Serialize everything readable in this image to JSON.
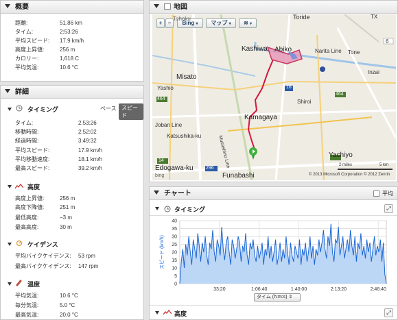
{
  "overview": {
    "title": "概要",
    "rows": [
      {
        "label": "距離:",
        "value": "51.86 km"
      },
      {
        "label": "タイム:",
        "value": "2:53:26"
      },
      {
        "label": "平均スピード:",
        "value": "17.9 km/h"
      },
      {
        "label": "高度上昇値:",
        "value": "256 m"
      },
      {
        "label": "カロリー:",
        "value": "1,618 C"
      },
      {
        "label": "平均気温:",
        "value": "10.6 °C"
      }
    ]
  },
  "details": {
    "title": "詳細",
    "timing": {
      "title": "タイミング",
      "toggle_pace": "ペース",
      "toggle_speed": "スピード",
      "rows": [
        {
          "label": "タイム:",
          "value": "2:53:26"
        },
        {
          "label": "移動時間:",
          "value": "2:52:02"
        },
        {
          "label": "経過時間:",
          "value": "3:49:32"
        },
        {
          "label": "平均スピード:",
          "value": "17.9 km/h"
        },
        {
          "label": "平均移動速度:",
          "value": "18.1 km/h"
        },
        {
          "label": "最高スピード:",
          "value": "39.2 km/h"
        }
      ]
    },
    "elevation": {
      "title": "高度",
      "rows": [
        {
          "label": "高度上昇値:",
          "value": "256 m"
        },
        {
          "label": "高度下降値:",
          "value": "251 m"
        },
        {
          "label": "最低高度:",
          "value": "−3 m"
        },
        {
          "label": "最高高度:",
          "value": "30 m"
        }
      ]
    },
    "cadence": {
      "title": "ケイデンス",
      "rows": [
        {
          "label": "平均バイクケイデンス:",
          "value": "53 rpm"
        },
        {
          "label": "最高バイクケイデンス:",
          "value": "147 rpm"
        }
      ]
    },
    "temperature": {
      "title": "温度",
      "rows": [
        {
          "label": "平均気温:",
          "value": "10.6 °C"
        },
        {
          "label": "毎分気温:",
          "value": "5.0 °C"
        },
        {
          "label": "最高気温:",
          "value": "20.0 °C"
        }
      ]
    }
  },
  "map": {
    "title": "地図",
    "zoom_in": "+",
    "zoom_out": "−",
    "provider": "Bing",
    "map_type": "マップ",
    "labels": {
      "toride": "Toride",
      "abiko": "Abiko",
      "kashiwa": "Kashiwa",
      "narita_line": "Narita Line",
      "tone": "Tone",
      "inzai": "Inzai",
      "misato": "Misato",
      "yashio": "Yashio",
      "kamagaya": "Kamagaya",
      "shiroi": "Shiroi",
      "joban_line": "Joban Line",
      "katsushika": "Katsushika-ku",
      "musashino_line": "Musashino Line",
      "yachiyo": "Yachiyo",
      "edogawa": "Edogawa-ku",
      "funabashi": "Funabashi",
      "tohoku": "Tohoku",
      "tx": "TX",
      "r6": "6",
      "r16": "16",
      "r464": "464",
      "r464b": "464",
      "r296": "296",
      "r14": "14"
    },
    "scale_miles": "2 miles",
    "scale_km": "5 km",
    "copyright": "© 2013 Microsoft Corporation  © 2012 Zenrin",
    "bing": "bing"
  },
  "chart": {
    "title": "チャート",
    "average_label": "平均",
    "timing_title": "タイミング",
    "elevation_title": "高度",
    "xaxis_select": "タイム (h:m:s)",
    "colors": {
      "line": "#1a66d4",
      "fill": "#bcd6f5"
    }
  },
  "chart_data": {
    "type": "area",
    "title": "",
    "xlabel": "タイム (h:m:s)",
    "ylabel": "スピード (km/h)",
    "xlim": [
      0,
      10406
    ],
    "ylim": [
      0,
      40
    ],
    "yticks": [
      0,
      5,
      10,
      15,
      20,
      25,
      30,
      35,
      40
    ],
    "xticks": [
      {
        "value": 2000,
        "label": "33:20"
      },
      {
        "value": 4000,
        "label": "1:06:40"
      },
      {
        "value": 6000,
        "label": "1:40:00"
      },
      {
        "value": 8000,
        "label": "2:13:20"
      },
      {
        "value": 10000,
        "label": "2:46:40"
      }
    ],
    "series": [
      {
        "values": [
          0,
          14,
          22,
          10,
          25,
          18,
          30,
          20,
          12,
          28,
          22,
          16,
          32,
          24,
          14,
          26,
          20,
          30,
          18,
          12,
          26,
          22,
          34,
          20,
          14,
          28,
          24,
          18,
          36,
          22,
          15,
          26,
          30,
          20,
          12,
          28,
          24,
          16,
          22,
          30,
          26,
          14,
          24,
          20,
          32,
          18,
          12,
          26,
          22,
          28,
          18,
          14,
          24,
          16,
          20,
          26,
          12,
          22,
          18,
          30,
          16,
          24,
          14,
          20,
          28,
          12,
          18,
          26,
          14,
          22,
          16,
          30,
          20,
          12,
          26,
          18,
          14,
          24,
          20,
          16,
          28,
          12,
          22,
          18,
          26,
          14,
          20,
          30,
          16,
          24,
          12,
          22,
          18,
          28,
          20,
          26,
          34,
          22,
          16,
          30,
          24,
          38,
          20,
          14,
          28,
          26,
          36,
          18,
          24,
          30,
          16,
          22,
          28,
          20,
          34,
          24,
          18,
          30,
          14,
          26,
          22,
          32,
          18,
          24,
          16,
          28,
          20,
          26,
          14,
          22,
          30,
          18,
          24,
          20,
          28,
          14,
          26,
          6,
          0
        ]
      }
    ]
  }
}
